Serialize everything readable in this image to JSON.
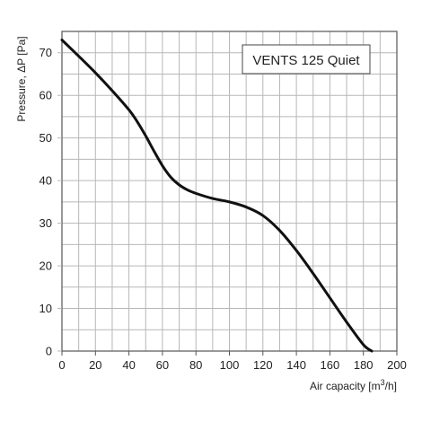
{
  "chart_data": {
    "type": "line",
    "title": "VENTS 125 Quiet",
    "xlabel": "Air capacity [m",
    "xlabel_sup": "3",
    "xlabel_tail": "/h]",
    "ylabel": "Pressure, ΔP [Pa]",
    "xlim": [
      0,
      200
    ],
    "ylim": [
      0,
      75
    ],
    "xticks": [
      0,
      20,
      40,
      60,
      80,
      100,
      120,
      140,
      160,
      180,
      200
    ],
    "yticks": [
      0,
      10,
      20,
      30,
      40,
      50,
      60,
      70
    ],
    "grid": true,
    "legend_position": "top-right",
    "series": [
      {
        "x": [
          0,
          10,
          20,
          30,
          40,
          45,
          50,
          55,
          60,
          65,
          70,
          75,
          80,
          90,
          100,
          110,
          120,
          130,
          140,
          150,
          160,
          170,
          180,
          185
        ],
        "y": [
          73,
          69.2,
          65.3,
          61.1,
          56.6,
          53.8,
          50.5,
          46.9,
          43.5,
          40.8,
          39.0,
          37.8,
          37.0,
          35.8,
          35.0,
          33.8,
          31.8,
          28.3,
          23.6,
          18.2,
          12.5,
          6.8,
          1.5,
          0
        ]
      }
    ]
  }
}
